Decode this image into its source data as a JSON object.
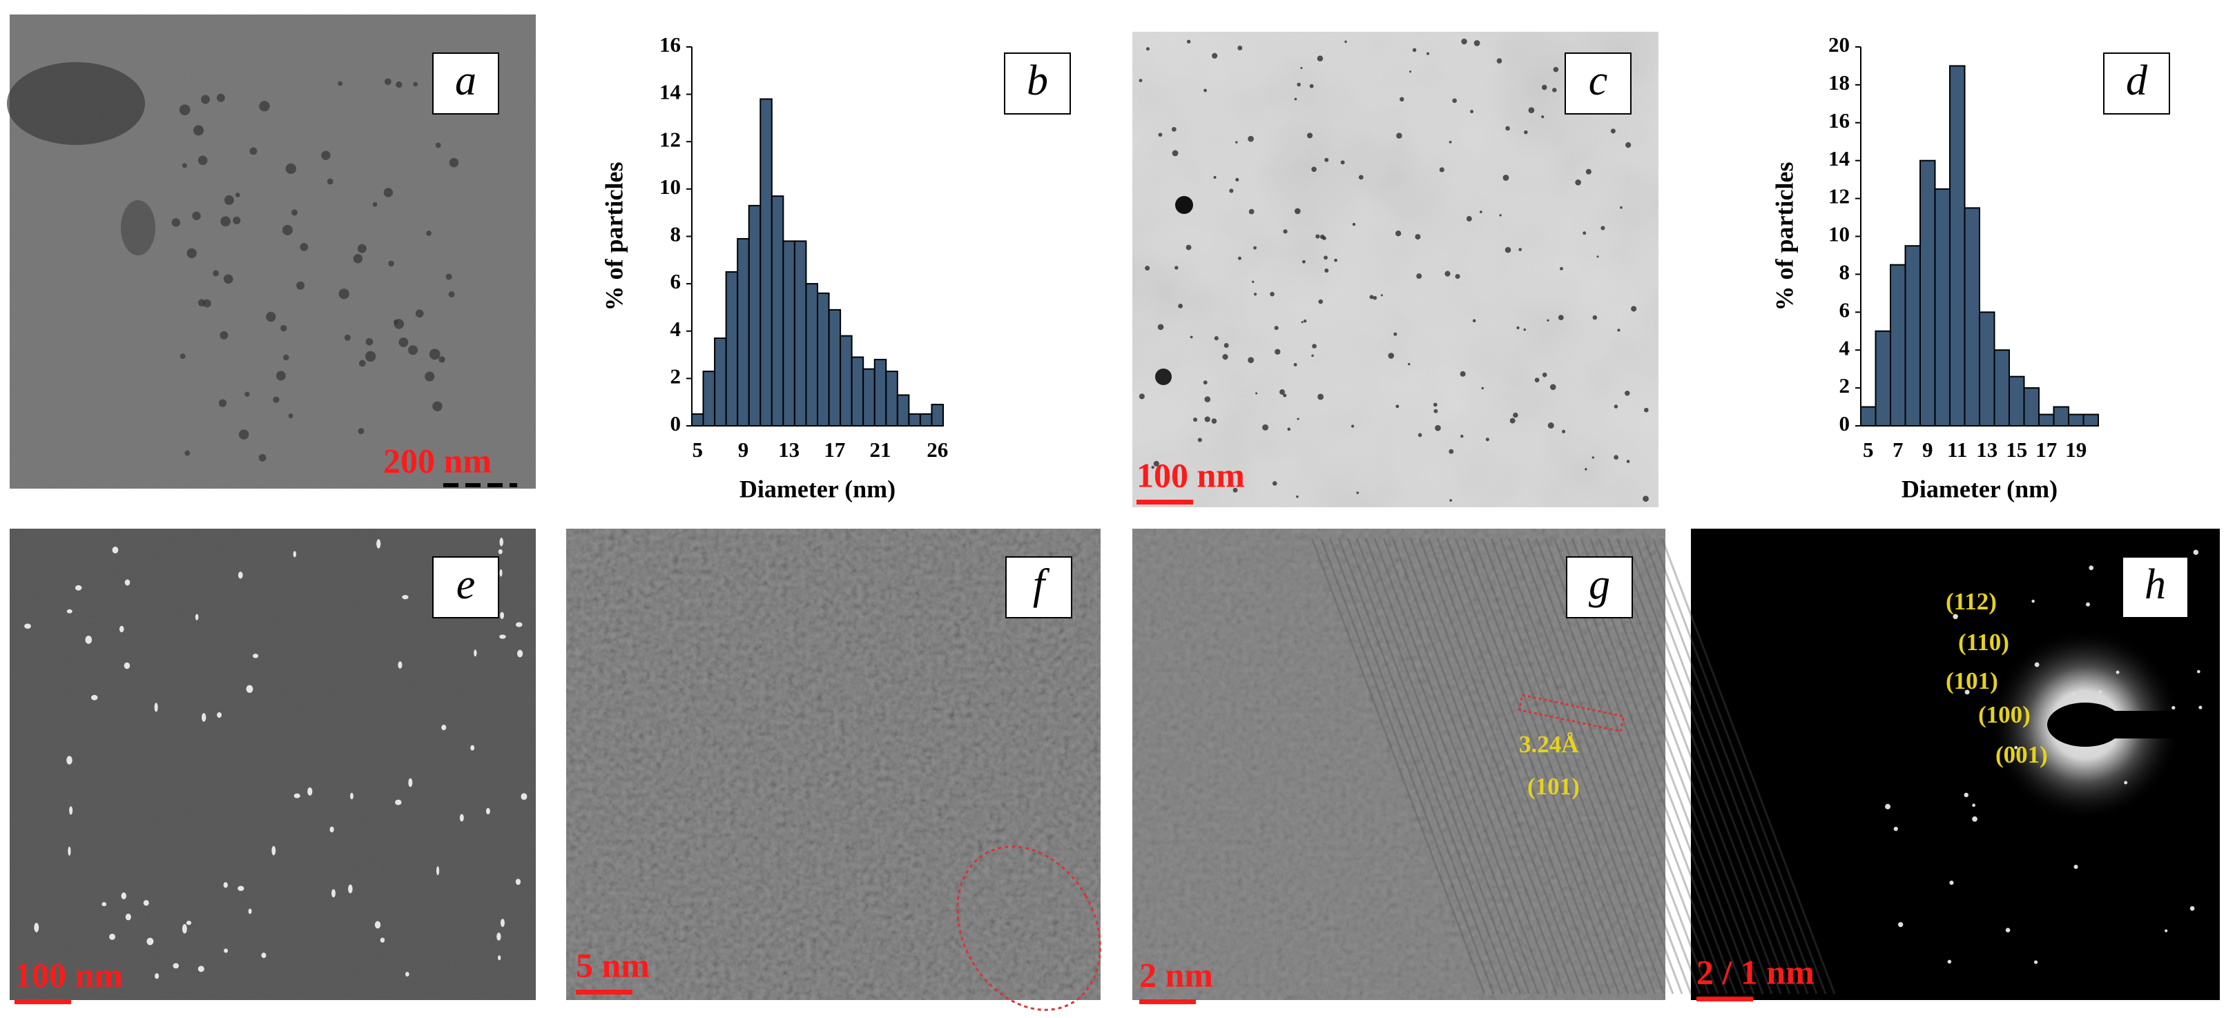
{
  "chart_data": [
    {
      "type": "bar",
      "xlabel": "Diameter (nm)",
      "ylabel": "% of particles",
      "categories": [
        5,
        null,
        null,
        null,
        9,
        null,
        null,
        null,
        13,
        null,
        null,
        null,
        17,
        null,
        null,
        null,
        21,
        null,
        null,
        null,
        null,
        26
      ],
      "values": [
        0.5,
        2.3,
        3.7,
        6.5,
        7.9,
        9.3,
        13.8,
        9.7,
        7.8,
        7.8,
        6.0,
        5.6,
        4.9,
        3.8,
        2.9,
        2.4,
        2.8,
        2.3,
        1.3,
        0.5,
        0.5,
        0.9
      ],
      "color": "#3d5a78",
      "ylim": [
        0,
        16
      ],
      "yticks": [
        0,
        2,
        4,
        6,
        8,
        10,
        12,
        14,
        16
      ]
    },
    {
      "type": "bar",
      "xlabel": "Diameter (nm)",
      "ylabel": "% of particles",
      "categories": [
        5,
        null,
        7,
        null,
        9,
        null,
        11,
        null,
        13,
        null,
        15,
        null,
        17,
        null,
        19,
        null
      ],
      "values": [
        1.0,
        5.0,
        8.5,
        9.5,
        14.0,
        12.5,
        19.0,
        11.5,
        6.0,
        4.0,
        2.6,
        2.0,
        0.6,
        1.0,
        0.6,
        0.6
      ],
      "color": "#3d5a78",
      "ylim": [
        0,
        20
      ],
      "yticks": [
        0,
        2,
        4,
        6,
        8,
        10,
        12,
        14,
        16,
        18,
        20
      ]
    }
  ],
  "panels": [
    {
      "label": "a",
      "scale_bar": "200 nm"
    },
    {
      "label": "b"
    },
    {
      "label": "c",
      "scale_bar": "100 nm"
    },
    {
      "label": "d"
    },
    {
      "label": "e",
      "scale_bar": "100 nm"
    },
    {
      "label": "f",
      "scale_bar": "5 nm"
    },
    {
      "label": "g",
      "scale_bar": "2 nm",
      "notes": [
        "3.24Å",
        "(101)"
      ]
    },
    {
      "label": "h",
      "scale_bar": "2 / 1 nm",
      "notes": [
        "(112)",
        "(110)",
        "(101)",
        "(100)",
        "(001)"
      ]
    }
  ]
}
